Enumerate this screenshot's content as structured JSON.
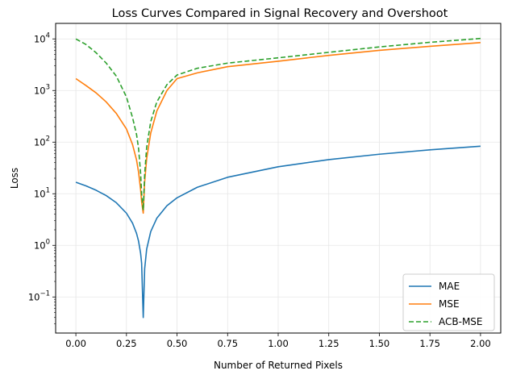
{
  "chart_data": {
    "type": "line",
    "title": "Loss Curves Compared in Signal Recovery and Overshoot",
    "xlabel": "Number of Returned Pixels",
    "ylabel": "Loss",
    "yscale": "log",
    "xlim": [
      -0.1,
      2.1
    ],
    "ylim": [
      0.02,
      20000
    ],
    "grid": true,
    "legend_position": "lower-right",
    "x_ticks": [
      {
        "value": 0.0,
        "label": "0.00"
      },
      {
        "value": 0.25,
        "label": "0.25"
      },
      {
        "value": 0.5,
        "label": "0.50"
      },
      {
        "value": 0.75,
        "label": "0.75"
      },
      {
        "value": 1.0,
        "label": "1.00"
      },
      {
        "value": 1.25,
        "label": "1.25"
      },
      {
        "value": 1.5,
        "label": "1.50"
      },
      {
        "value": 1.75,
        "label": "1.75"
      },
      {
        "value": 2.0,
        "label": "2.00"
      }
    ],
    "y_ticks": [
      {
        "value": 0.1,
        "base": "10",
        "exp": "−1"
      },
      {
        "value": 1,
        "base": "10",
        "exp": "0"
      },
      {
        "value": 10,
        "base": "10",
        "exp": "1"
      },
      {
        "value": 100,
        "base": "10",
        "exp": "2"
      },
      {
        "value": 1000,
        "base": "10",
        "exp": "3"
      },
      {
        "value": 10000,
        "base": "10",
        "exp": "4"
      }
    ],
    "x": [
      0.0,
      0.05,
      0.1,
      0.15,
      0.2,
      0.25,
      0.28,
      0.3,
      0.31,
      0.32,
      0.325,
      0.333,
      0.34,
      0.35,
      0.37,
      0.4,
      0.45,
      0.5,
      0.6,
      0.75,
      1.0,
      1.25,
      1.5,
      1.75,
      2.0
    ],
    "series": [
      {
        "name": "MAE",
        "color": "#1f77b4",
        "dash": "solid",
        "values": [
          16.7,
          14.2,
          11.7,
          9.2,
          6.7,
          4.2,
          2.7,
          1.7,
          1.2,
          0.7,
          0.45,
          0.04,
          0.35,
          0.85,
          1.85,
          3.35,
          5.85,
          8.35,
          13.35,
          20.85,
          33.35,
          45.85,
          58.35,
          70.85,
          83.35
        ]
      },
      {
        "name": "MSE",
        "color": "#ff7f0e",
        "dash": "solid",
        "values": [
          1700,
          1250,
          900,
          600,
          360,
          180,
          90,
          45,
          26,
          12,
          7,
          4.2,
          17,
          48,
          150,
          400,
          1000,
          1700,
          2200,
          2900,
          3700,
          4800,
          6000,
          7200,
          8500
        ]
      },
      {
        "name": "ACB-MSE",
        "color": "#2ca02c",
        "dash": "dashed",
        "values": [
          10000,
          7800,
          5400,
          3400,
          1900,
          750,
          300,
          140,
          75,
          25,
          10,
          4.8,
          24,
          80,
          250,
          600,
          1300,
          2000,
          2700,
          3400,
          4300,
          5500,
          7000,
          8600,
          10200
        ]
      }
    ]
  }
}
